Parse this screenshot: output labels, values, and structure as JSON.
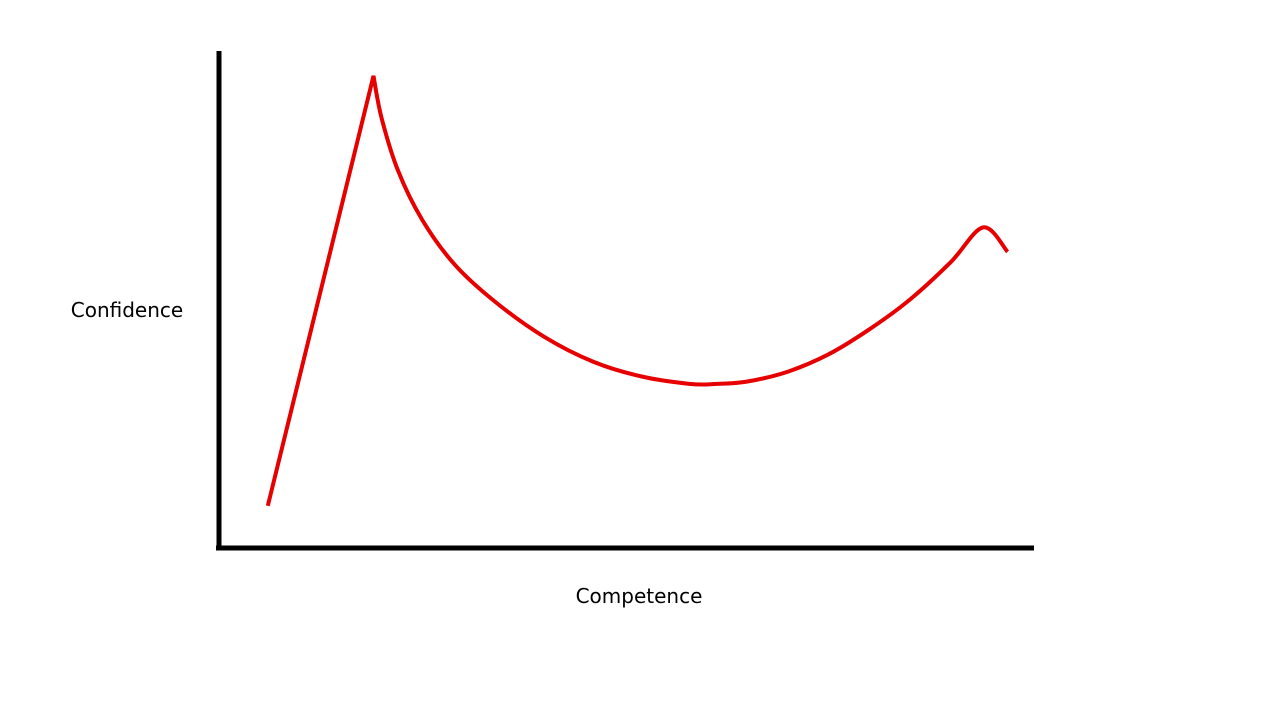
{
  "chart_data": {
    "type": "line",
    "title": "",
    "xlabel": "Competence",
    "ylabel": "Confidence",
    "xlim": [
      0,
      100
    ],
    "ylim": [
      0,
      100
    ],
    "grid": false,
    "legend": "none",
    "axis_ticks": false,
    "line_color": "#e60000",
    "axis_color": "#000000",
    "series": [
      {
        "x": [
          6,
          19,
          20,
          22,
          25,
          29,
          34,
          40,
          46,
          52,
          58,
          61,
          65,
          70,
          75,
          80,
          85,
          90,
          94,
          97
        ],
        "y": [
          8.5,
          95,
          86.5,
          76,
          66,
          57,
          49.5,
          42.5,
          37.5,
          34.5,
          33,
          33,
          33.5,
          35.5,
          39,
          44,
          50,
          57.5,
          64.5,
          59.6
        ]
      }
    ]
  }
}
